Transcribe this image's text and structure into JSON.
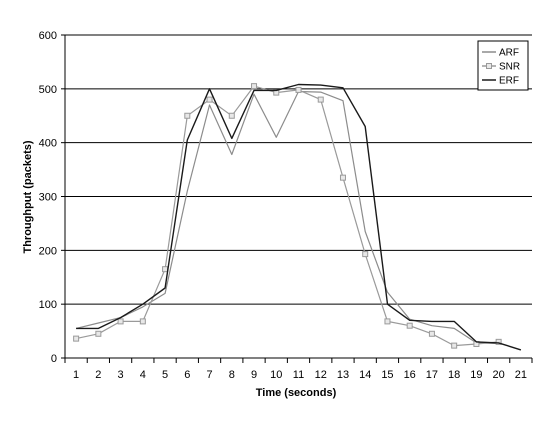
{
  "chart_data": {
    "type": "line",
    "title": "",
    "xlabel": "Time (seconds)",
    "ylabel": "Throughput (packets)",
    "x": [
      1,
      2,
      3,
      4,
      5,
      6,
      7,
      8,
      9,
      10,
      11,
      12,
      13,
      14,
      15,
      16,
      17,
      18,
      19,
      20,
      21
    ],
    "xlim": [
      1,
      21
    ],
    "ylim": [
      0,
      600
    ],
    "yticks": [
      0,
      100,
      200,
      300,
      400,
      500,
      600
    ],
    "grid": true,
    "legend_position": "top-right",
    "series": [
      {
        "name": "ARF",
        "color": "#8c8c8c",
        "marker": "none",
        "x": [
          1,
          2,
          3,
          4,
          5,
          6,
          7,
          8,
          9,
          10,
          11,
          12,
          13,
          14,
          15,
          16,
          17,
          18,
          19,
          20
        ],
        "values": [
          55,
          65,
          75,
          95,
          120,
          310,
          470,
          378,
          490,
          410,
          495,
          494,
          478,
          235,
          122,
          72,
          60,
          55,
          28,
          27
        ]
      },
      {
        "name": "SNR",
        "color": "#9a9a9a",
        "marker": "square",
        "x": [
          1,
          2,
          3,
          4,
          5,
          6,
          7,
          8,
          9,
          10,
          11,
          12,
          13,
          14,
          15,
          16,
          17,
          18,
          19,
          20
        ],
        "values": [
          36,
          45,
          68,
          68,
          165,
          450,
          480,
          450,
          505,
          493,
          498,
          480,
          335,
          193,
          68,
          60,
          45,
          23,
          26,
          30
        ]
      },
      {
        "name": "ERF",
        "color": "#1a1a1a",
        "marker": "none",
        "x": [
          1,
          2,
          3,
          4,
          5,
          6,
          7,
          8,
          9,
          10,
          11,
          12,
          13,
          14,
          15,
          16,
          17,
          18,
          19,
          20,
          21
        ],
        "values": [
          55,
          55,
          75,
          100,
          130,
          405,
          500,
          408,
          497,
          497,
          508,
          507,
          502,
          430,
          100,
          70,
          68,
          68,
          30,
          28,
          15
        ]
      }
    ]
  }
}
